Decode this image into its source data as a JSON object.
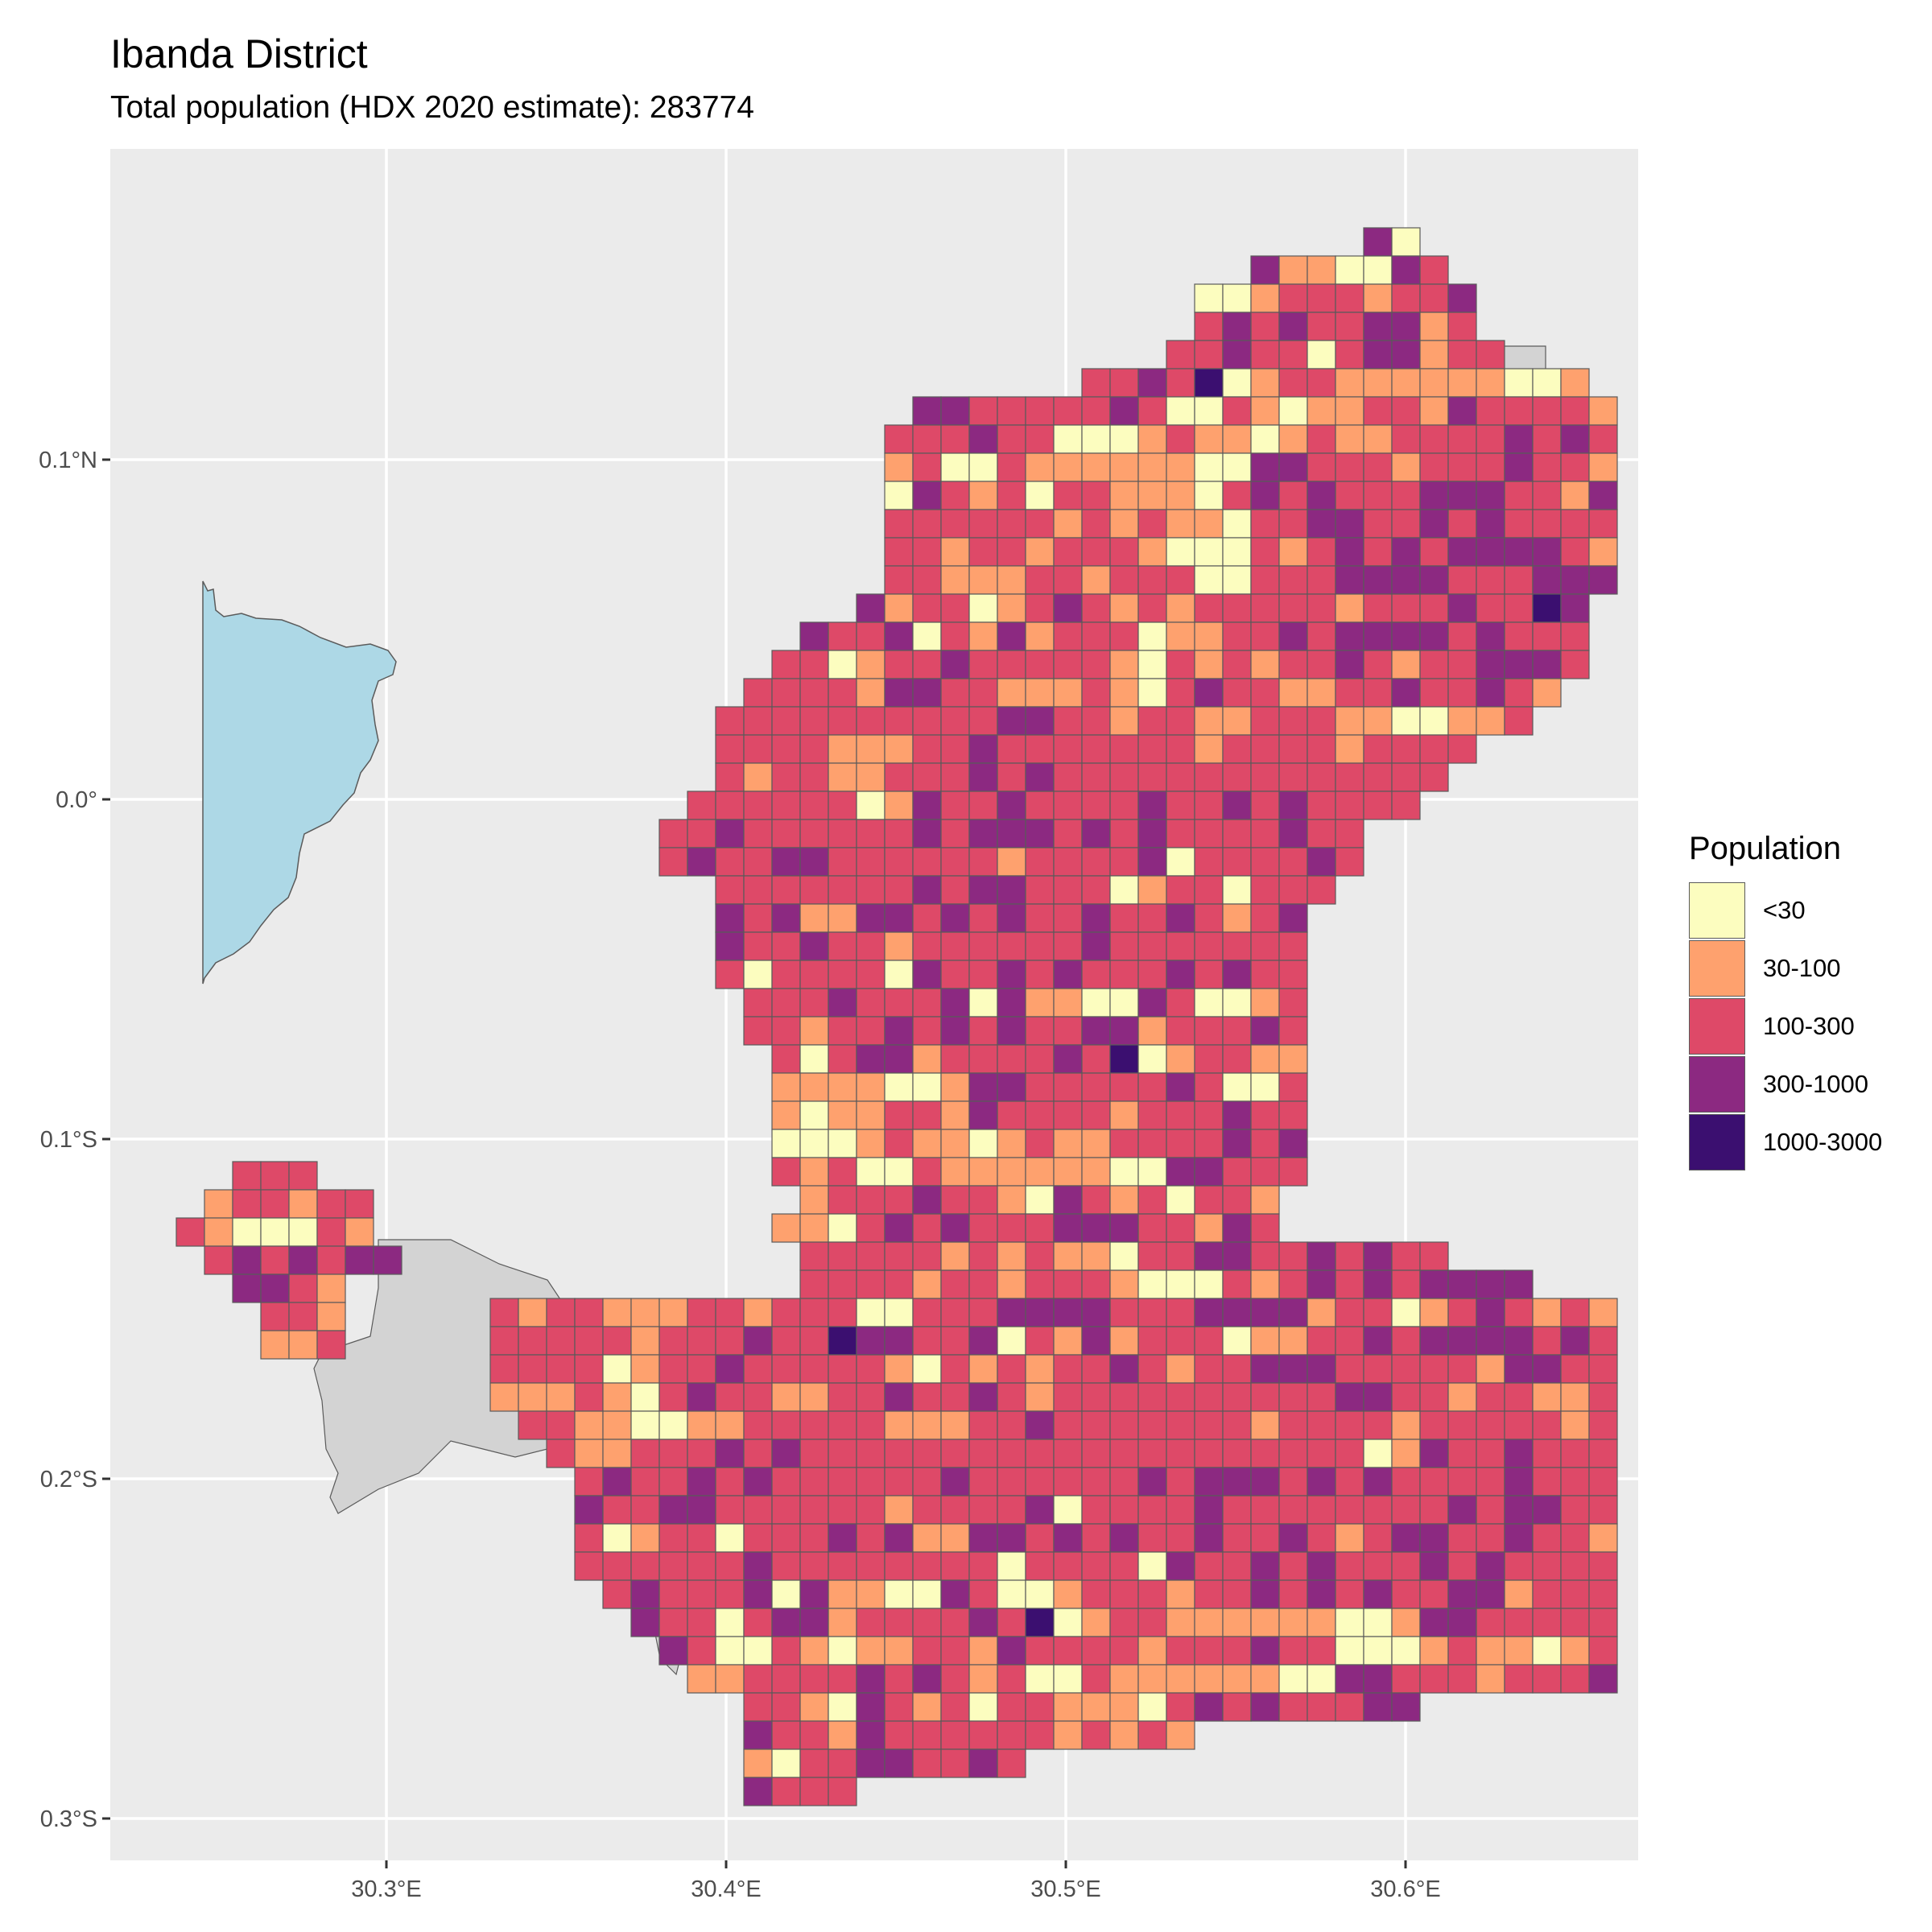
{
  "title": "Ibanda District",
  "subtitle": "Total population (HDX 2020 estimate): 283774",
  "chart_data": {
    "type": "choropleth-grid-map",
    "x_axis": {
      "ticks": [
        "30.3°E",
        "30.4°E",
        "30.5°E",
        "30.6°E"
      ],
      "tick_values": [
        30.3,
        30.4,
        30.5,
        30.6
      ]
    },
    "y_axis": {
      "ticks": [
        "0.1°N",
        "0.0°",
        "0.1°S",
        "0.2°S",
        "0.3°S"
      ],
      "tick_values": [
        0.1,
        0.0,
        -0.1,
        -0.2,
        -0.3
      ]
    },
    "xlim": [
      30.218,
      30.668
    ],
    "ylim": [
      -0.311,
      0.19
    ],
    "grid": true,
    "water_color": "#add8e6",
    "boundary_fill": "#d3d3d3",
    "legend": {
      "title": "Population",
      "position": "right",
      "classes": [
        {
          "label": "<30",
          "color": "#fcfdbf"
        },
        {
          "label": "30-100",
          "color": "#fea16e"
        },
        {
          "label": "100-300",
          "color": "#de4968"
        },
        {
          "label": "300-1000",
          "color": "#8c2981"
        },
        {
          "label": "1000-3000",
          "color": "#3b0f70"
        }
      ]
    },
    "cell_size_deg": 0.00833,
    "origin": {
      "lon": 30.2213,
      "lat": 0.1743
    },
    "grid_rows": [
      ".........................................................................0",
      "........................................................................",
      ".........................................................................",
      "......................................................................0.....................................",
      "..................................................................................................................."
    ],
    "rows": [
      {
        "row": 0,
        "start": 43,
        "cells": "30"
      },
      {
        "row": 1,
        "start": 40,
        "cells": "3110032001"
      },
      {
        "row": 2,
        "start": 37,
        "cells": "2221223232322"
      },
      {
        "row": 3,
        "start": 37,
        "cells": "33122232202"
      },
      {
        "row": 4,
        "start": 37,
        "cells": "331222232401221111"
      },
      {
        "row": 5,
        "start": 33,
        "cells": "1100133222223200210"
      },
      {
        "row": 6,
        "start": 31,
        "cells": "112213222212223220001"
      },
      {
        "row": 7,
        "start": 27,
        "cells": "2110121122223232120021111"
      },
      {
        "row": 8,
        "start": 27,
        "cells": "11003322212223221032120221110"
      },
      {
        "row": 9,
        "start": 27,
        "cells": "2323222333221322222212121"
      },
      {
        "row": 10,
        "start": 27,
        "cells": "1022332232322222212212221000"
      },
      {
        "row": 11,
        "start": 27,
        "cells": "21232323333212211122122200"
      },
      {
        "row": 12,
        "start": 26,
        "cells": "22233332223333122012321212"
      },
      {
        "row": 13,
        "start": 25,
        "cells": "222212223224332230213122201"
      },
      {
        "row": 14,
        "start": 21,
        "cells": "122323333232222201223222221021"
      },
      {
        "row": 15,
        "start": 21,
        "cells": "2122321223332222213322111"
      },
      {
        "row": 16,
        "start": 19,
        "cells": "2102322112232232122222222"
      },
      {
        "row": 17,
        "start": 19,
        "cells": "22332212211222110011222221"
      },
      {
        "row": 18,
        "start": 18,
        "cells": "112232222222122221222221221"
      },
      {
        "row": 19,
        "start": 18,
        "cells": "1222323222222222222222222220"
      },
      {
        "row": 20,
        "start": 18,
        "cells": "1322322223223232222223222222"
      },
      {
        "row": 21,
        "start": 18,
        "cells": "3233323232222322232233222222"
      },
      {
        "row": 22,
        "start": 18,
        "cells": "1222230222232222222232332220"
      },
      {
        "row": 23,
        "start": 20,
        "cells": "1220222323113323232232232"
      },
      {
        "row": 24,
        "start": 20,
        "cells": "12332232212222223222222220"
      },
      {
        "row": 25,
        "start": 20,
        "cells": "22220322323222323222223222"
      }
    ]
  }
}
